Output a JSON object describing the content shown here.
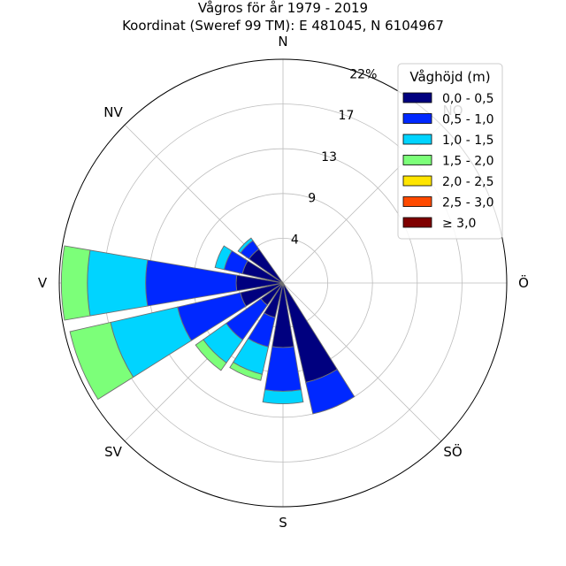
{
  "chart_data": {
    "type": "windrose",
    "title": "Vågros för år 1979 - 2019",
    "subtitle": "Koordinat (Sweref 99 TM): E 481045, N 6104967",
    "directions": [
      "N",
      "NO",
      "Ö",
      "SÖ",
      "S",
      "SV",
      "V",
      "NV"
    ],
    "radial_ticks": [
      "4",
      "9",
      "13",
      "17",
      "22%"
    ],
    "radial_tick_values": [
      4.3,
      8.6,
      12.9,
      17.2,
      21.5
    ],
    "r_max": 21.5,
    "sector_width_deg": 22.5,
    "legend_title": "Våghöjd (m)",
    "legend_position": "top-right",
    "grid": true,
    "bins": [
      {
        "label": "0,0 - 0,5",
        "color": "#00007f"
      },
      {
        "label": "0,5 - 1,0",
        "color": "#0028ff"
      },
      {
        "label": "1,0 - 1,5",
        "color": "#00d4ff"
      },
      {
        "label": "1,5 - 2,0",
        "color": "#7cff79"
      },
      {
        "label": "2,0 - 2,5",
        "color": "#ffe500"
      },
      {
        "label": "2,5 - 3,0",
        "color": "#ff4a00"
      },
      {
        "label": "≥ 3,0",
        "color": "#7f0000"
      }
    ],
    "sectors": [
      {
        "direction_deg": 315,
        "cumulative": [
          4.0,
          5.0,
          5.3
        ]
      },
      {
        "direction_deg": 292.5,
        "cumulative": [
          4.0,
          5.8,
          6.7
        ]
      },
      {
        "direction_deg": 270,
        "cumulative": [
          4.5,
          13.2,
          18.8,
          21.3
        ]
      },
      {
        "direction_deg": 247.5,
        "cumulative": [
          4.2,
          10.4,
          17.0,
          21.0
        ]
      },
      {
        "direction_deg": 225,
        "cumulative": [
          2.6,
          6.7,
          9.4,
          10.3
        ]
      },
      {
        "direction_deg": 202.5,
        "cumulative": [
          3.4,
          6.3,
          9.0,
          9.6
        ]
      },
      {
        "direction_deg": 180,
        "cumulative": [
          6.2,
          10.4,
          11.6
        ]
      },
      {
        "direction_deg": 157.5,
        "cumulative": [
          9.8,
          12.9
        ]
      }
    ]
  }
}
